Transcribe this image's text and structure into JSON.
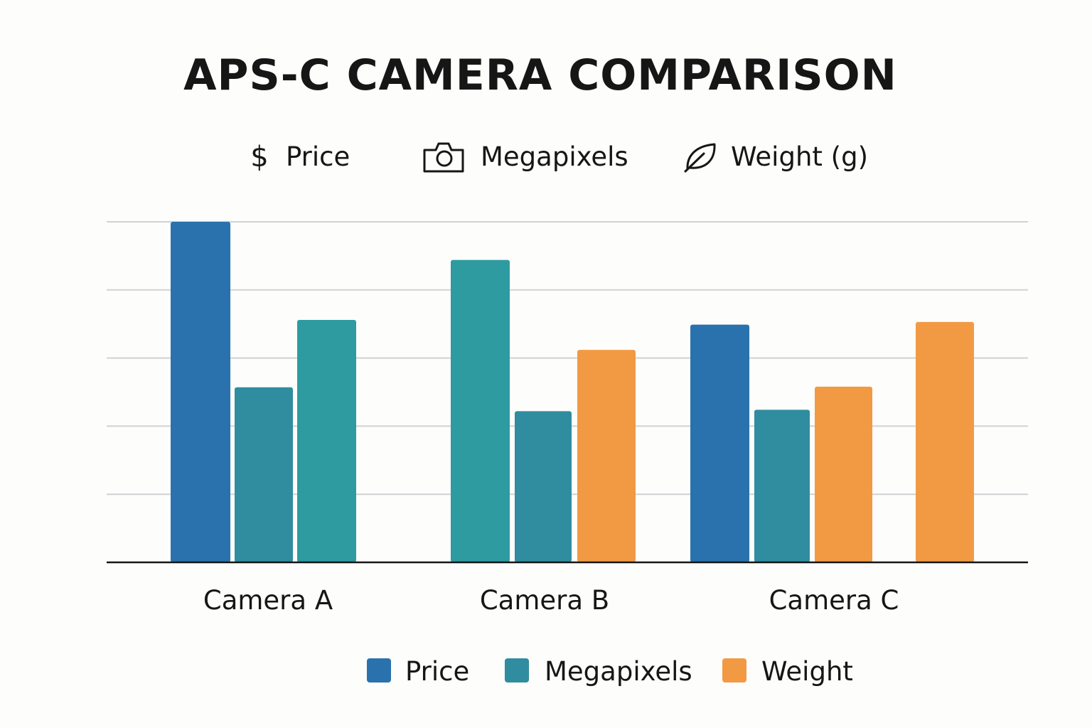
{
  "header": {
    "items": [
      {
        "icon": "dollar-icon",
        "label": "Price"
      },
      {
        "icon": "camera-icon",
        "label": "Megapixels"
      },
      {
        "icon": "leaf-icon",
        "label": "Weight (g)"
      }
    ],
    "dollar_glyph": "$"
  },
  "chart_data": {
    "type": "bar",
    "title": "APS-C CAMERA COMPARISON",
    "xlabel": "",
    "ylabel": "",
    "ylim": [
      0,
      5
    ],
    "grid": true,
    "legend_position": "bottom",
    "categories": [
      "Camera A",
      "Camera B",
      "Camera C"
    ],
    "groups": [
      {
        "category": "Camera A",
        "bars": [
          {
            "series": "Price",
            "value": 5.0
          },
          {
            "series": "Megapixels",
            "value": 2.57
          },
          {
            "series": "Megapixels",
            "value": 3.56
          }
        ]
      },
      {
        "category": "Camera B",
        "bars": [
          {
            "series": "Megapixels",
            "value": 4.44
          },
          {
            "series": "Megapixels",
            "value": 2.22
          },
          {
            "series": "Weight",
            "value": 3.12
          }
        ]
      },
      {
        "category": "Camera C",
        "bars": [
          {
            "series": "Price",
            "value": 3.49
          },
          {
            "series": "Megapixels",
            "value": 2.24
          },
          {
            "series": "Weight",
            "value": 2.58
          },
          {
            "series": "Weight",
            "value": 3.53
          }
        ]
      }
    ],
    "series": [
      {
        "name": "Price",
        "color": "#2a72ad"
      },
      {
        "name": "Megapixels",
        "color": "#2f8d9f"
      },
      {
        "name": "Weight",
        "color": "#f29a43"
      }
    ],
    "bar_shades": {
      "Megapixels_light": "#2e9ba0"
    }
  }
}
